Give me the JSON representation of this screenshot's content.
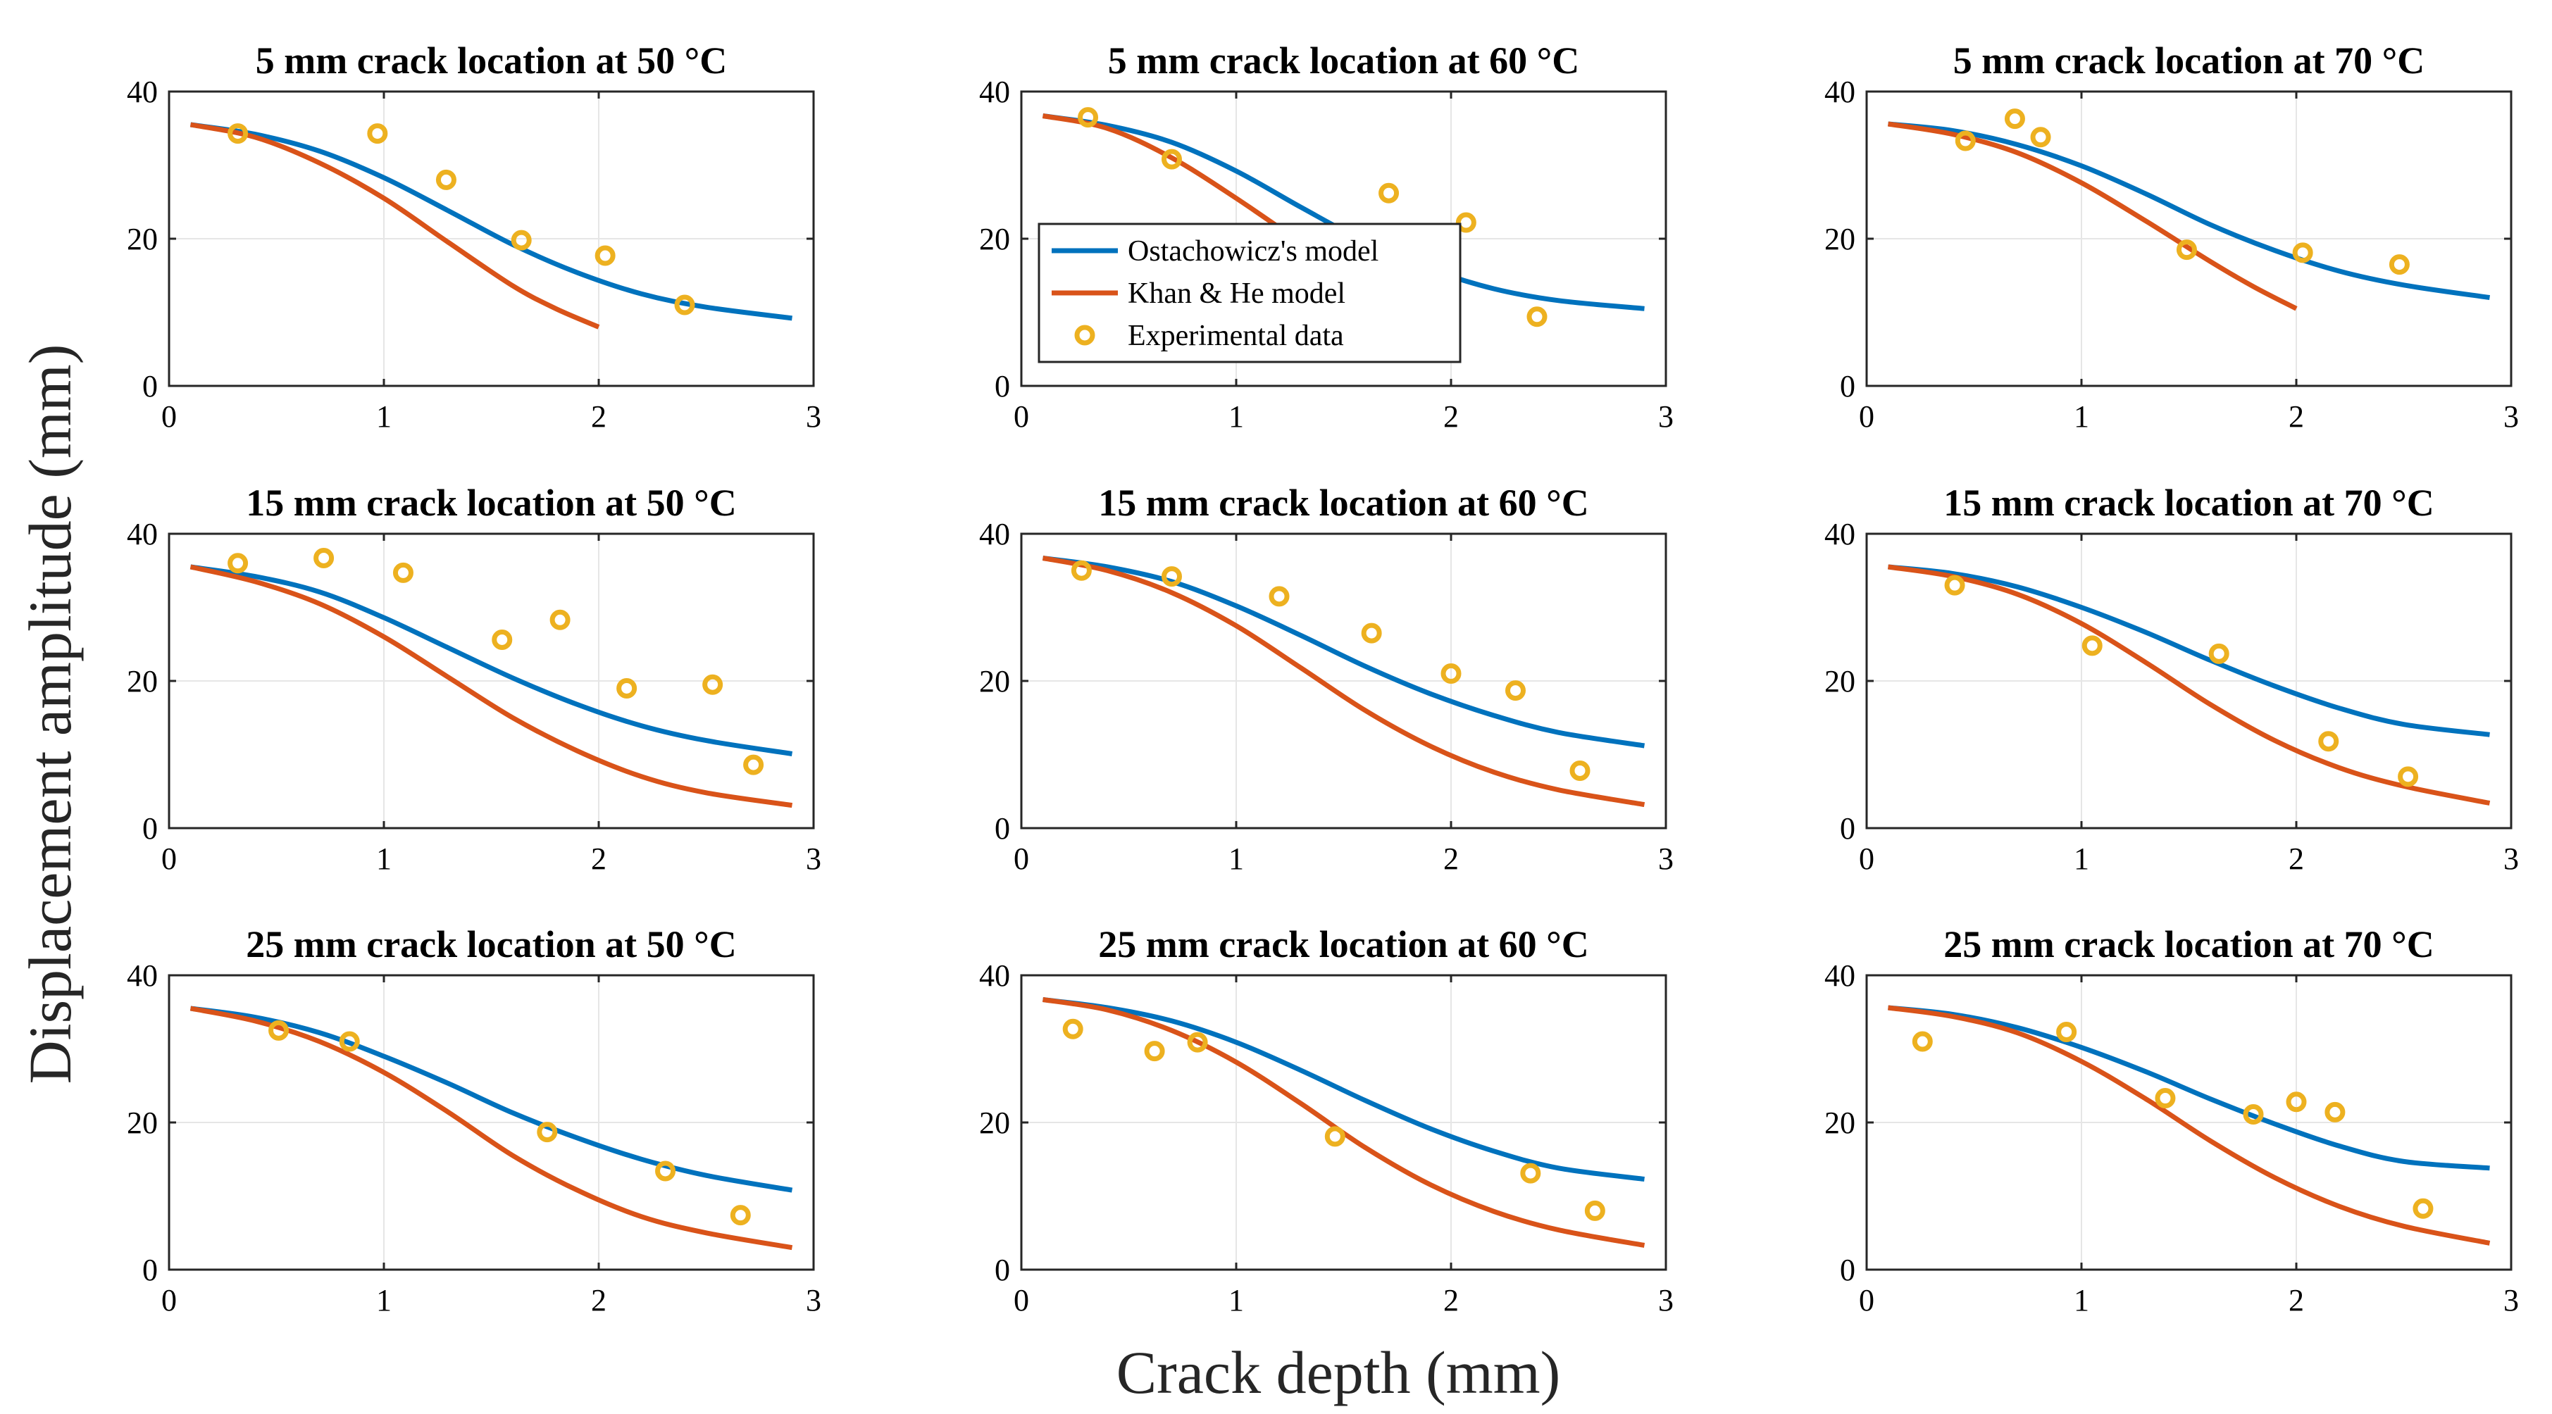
{
  "figure": {
    "ylabel": "Displacement amplitude (mm)",
    "xlabel": "Crack depth (mm)"
  },
  "legend": {
    "location": "center-left of top-middle panel",
    "entries": [
      {
        "label": "Ostachowicz's model",
        "kind": "line",
        "color": "#0072BD"
      },
      {
        "label": "Khan & He model",
        "kind": "line",
        "color": "#D95319"
      },
      {
        "label": "Experimental data",
        "kind": "marker",
        "color": "#EDB120"
      }
    ]
  },
  "colors": {
    "ostachowicz": "#0072BD",
    "khan_he": "#D95319",
    "experimental": "#EDB120",
    "grid": "#e6e6e6"
  },
  "chart_data": [
    {
      "type": "line",
      "title": "5 mm crack location at 50 °C",
      "xlim": [
        0,
        3
      ],
      "ylim": [
        0,
        40
      ],
      "xticks": [
        "0",
        "1",
        "2",
        "3"
      ],
      "yticks": [
        "0",
        "20",
        "40"
      ],
      "grid": true,
      "series": [
        {
          "name": "Ostachowicz's model",
          "x": [
            0.1,
            0.4,
            0.7,
            1.0,
            1.3,
            1.6,
            1.9,
            2.2,
            2.5,
            2.9
          ],
          "y": [
            35.5,
            34.2,
            31.9,
            28.3,
            23.8,
            19.2,
            15.4,
            12.5,
            10.7,
            9.2
          ]
        },
        {
          "name": "Khan & He model",
          "x": [
            0.1,
            0.4,
            0.7,
            1.0,
            1.3,
            1.6,
            1.8,
            2.0
          ],
          "y": [
            35.5,
            33.8,
            30.3,
            25.5,
            19.5,
            13.6,
            10.5,
            8.0
          ]
        },
        {
          "name": "Experimental data",
          "x": [
            0.32,
            0.97,
            1.29,
            1.64,
            2.03,
            2.4
          ],
          "y": [
            34.3,
            34.3,
            28.0,
            19.8,
            17.7,
            11.0
          ]
        }
      ]
    },
    {
      "type": "line",
      "title": "5 mm crack location at 60 °C",
      "xlim": [
        0,
        3
      ],
      "ylim": [
        0,
        40
      ],
      "xticks": [
        "0",
        "1",
        "2",
        "3"
      ],
      "yticks": [
        "0",
        "20",
        "40"
      ],
      "grid": true,
      "series": [
        {
          "name": "Ostachowicz's model",
          "x": [
            0.1,
            0.4,
            0.7,
            1.0,
            1.3,
            1.6,
            1.9,
            2.2,
            2.5,
            2.9
          ],
          "y": [
            36.7,
            35.4,
            33.1,
            29.2,
            24.3,
            19.6,
            15.9,
            13.2,
            11.6,
            10.5
          ]
        },
        {
          "name": "Khan & He model",
          "x": [
            0.1,
            0.4,
            0.7,
            1.0,
            1.3
          ],
          "y": [
            36.7,
            35.0,
            31.0,
            25.5,
            19.5
          ]
        },
        {
          "name": "Experimental data",
          "x": [
            0.31,
            0.7,
            1.71,
            2.07,
            2.4
          ],
          "y": [
            36.5,
            30.8,
            26.2,
            22.2,
            9.4
          ]
        }
      ]
    },
    {
      "type": "line",
      "title": "5 mm crack location at 70 °C",
      "xlim": [
        0,
        3
      ],
      "ylim": [
        0,
        40
      ],
      "xticks": [
        "0",
        "1",
        "2",
        "3"
      ],
      "yticks": [
        "0",
        "20",
        "40"
      ],
      "grid": true,
      "series": [
        {
          "name": "Ostachowicz's model",
          "x": [
            0.1,
            0.4,
            0.7,
            1.0,
            1.3,
            1.6,
            1.9,
            2.2,
            2.5,
            2.9
          ],
          "y": [
            35.6,
            34.7,
            32.8,
            29.9,
            26.1,
            21.9,
            18.4,
            15.6,
            13.7,
            12.0
          ]
        },
        {
          "name": "Khan & He model",
          "x": [
            0.1,
            0.4,
            0.7,
            1.0,
            1.3,
            1.6,
            1.8,
            2.0
          ],
          "y": [
            35.6,
            34.2,
            31.7,
            27.6,
            22.4,
            16.9,
            13.5,
            10.5
          ]
        },
        {
          "name": "Experimental data",
          "x": [
            0.46,
            0.69,
            0.81,
            1.49,
            2.03,
            2.48
          ],
          "y": [
            33.3,
            36.3,
            33.8,
            18.5,
            18.1,
            16.5
          ]
        }
      ]
    },
    {
      "type": "line",
      "title": "15 mm crack location at 50 °C",
      "xlim": [
        0,
        3
      ],
      "ylim": [
        0,
        40
      ],
      "xticks": [
        "0",
        "1",
        "2",
        "3"
      ],
      "yticks": [
        "0",
        "20",
        "40"
      ],
      "grid": true,
      "series": [
        {
          "name": "Ostachowicz's model",
          "x": [
            0.1,
            0.4,
            0.7,
            1.0,
            1.3,
            1.6,
            1.9,
            2.2,
            2.5,
            2.9
          ],
          "y": [
            35.5,
            34.2,
            32.1,
            28.6,
            24.5,
            20.4,
            16.8,
            13.9,
            11.9,
            10.1
          ]
        },
        {
          "name": "Khan & He model",
          "x": [
            0.1,
            0.4,
            0.7,
            1.0,
            1.3,
            1.6,
            1.9,
            2.2,
            2.5,
            2.9
          ],
          "y": [
            35.5,
            33.5,
            30.5,
            26.0,
            20.5,
            15.0,
            10.5,
            7.0,
            4.8,
            3.1
          ]
        },
        {
          "name": "Experimental data",
          "x": [
            0.32,
            0.72,
            1.09,
            1.55,
            1.82,
            2.13,
            2.53,
            2.72
          ],
          "y": [
            36.0,
            36.7,
            34.7,
            25.6,
            28.3,
            19.0,
            19.5,
            8.6
          ]
        }
      ]
    },
    {
      "type": "line",
      "title": "15 mm crack location at 60 °C",
      "xlim": [
        0,
        3
      ],
      "ylim": [
        0,
        40
      ],
      "xticks": [
        "0",
        "1",
        "2",
        "3"
      ],
      "yticks": [
        "0",
        "20",
        "40"
      ],
      "grid": true,
      "series": [
        {
          "name": "Ostachowicz's model",
          "x": [
            0.1,
            0.4,
            0.7,
            1.0,
            1.3,
            1.6,
            1.9,
            2.2,
            2.5,
            2.9
          ],
          "y": [
            36.7,
            35.5,
            33.5,
            30.2,
            26.2,
            22.0,
            18.3,
            15.3,
            13.0,
            11.2
          ]
        },
        {
          "name": "Khan & He model",
          "x": [
            0.1,
            0.4,
            0.7,
            1.0,
            1.3,
            1.6,
            1.9,
            2.2,
            2.5,
            2.9
          ],
          "y": [
            36.7,
            35.0,
            32.0,
            27.5,
            21.8,
            16.0,
            11.2,
            7.6,
            5.2,
            3.2
          ]
        },
        {
          "name": "Experimental data",
          "x": [
            0.28,
            0.7,
            1.2,
            1.63,
            2.0,
            2.3,
            2.6
          ],
          "y": [
            35.0,
            34.2,
            31.5,
            26.5,
            21.0,
            18.7,
            7.8
          ]
        }
      ]
    },
    {
      "type": "line",
      "title": "15 mm crack location at 70 °C",
      "xlim": [
        0,
        3
      ],
      "ylim": [
        0,
        40
      ],
      "xticks": [
        "0",
        "1",
        "2",
        "3"
      ],
      "yticks": [
        "0",
        "20",
        "40"
      ],
      "grid": true,
      "series": [
        {
          "name": "Ostachowicz's model",
          "x": [
            0.1,
            0.4,
            0.7,
            1.0,
            1.3,
            1.6,
            1.9,
            2.2,
            2.5,
            2.9
          ],
          "y": [
            35.5,
            34.6,
            32.8,
            30.0,
            26.6,
            22.8,
            19.3,
            16.3,
            14.1,
            12.7
          ]
        },
        {
          "name": "Khan & He model",
          "x": [
            0.1,
            0.4,
            0.7,
            1.0,
            1.3,
            1.6,
            1.9,
            2.2,
            2.5,
            2.9
          ],
          "y": [
            35.5,
            34.2,
            31.8,
            27.8,
            22.5,
            16.8,
            11.9,
            8.2,
            5.7,
            3.4
          ]
        },
        {
          "name": "Experimental data",
          "x": [
            0.41,
            1.05,
            1.64,
            2.15,
            2.52
          ],
          "y": [
            33.0,
            24.8,
            23.7,
            11.8,
            7.0
          ]
        }
      ]
    },
    {
      "type": "line",
      "title": "25 mm crack location at 50 °C",
      "xlim": [
        0,
        3
      ],
      "ylim": [
        0,
        40
      ],
      "xticks": [
        "0",
        "1",
        "2",
        "3"
      ],
      "yticks": [
        "0",
        "20",
        "40"
      ],
      "grid": true,
      "series": [
        {
          "name": "Ostachowicz's model",
          "x": [
            0.1,
            0.4,
            0.7,
            1.0,
            1.3,
            1.6,
            1.9,
            2.2,
            2.5,
            2.9
          ],
          "y": [
            35.5,
            34.3,
            32.2,
            29.0,
            25.3,
            21.3,
            17.9,
            15.0,
            12.8,
            10.8
          ]
        },
        {
          "name": "Khan & He model",
          "x": [
            0.1,
            0.4,
            0.7,
            1.0,
            1.3,
            1.6,
            1.9,
            2.2,
            2.5,
            2.9
          ],
          "y": [
            35.5,
            33.8,
            31.0,
            26.8,
            21.4,
            15.5,
            10.8,
            7.2,
            5.0,
            3.0
          ]
        },
        {
          "name": "Experimental data",
          "x": [
            0.51,
            0.84,
            1.76,
            2.31,
            2.66
          ],
          "y": [
            32.5,
            31.0,
            18.7,
            13.4,
            7.4
          ]
        }
      ]
    },
    {
      "type": "line",
      "title": "25 mm crack location at 60 °C",
      "xlim": [
        0,
        3
      ],
      "ylim": [
        0,
        40
      ],
      "xticks": [
        "0",
        "1",
        "2",
        "3"
      ],
      "yticks": [
        "0",
        "20",
        "40"
      ],
      "grid": true,
      "series": [
        {
          "name": "Ostachowicz's model",
          "x": [
            0.1,
            0.4,
            0.7,
            1.0,
            1.3,
            1.6,
            1.9,
            2.2,
            2.5,
            2.9
          ],
          "y": [
            36.7,
            35.6,
            33.8,
            30.9,
            27.1,
            23.0,
            19.2,
            16.1,
            13.8,
            12.3
          ]
        },
        {
          "name": "Khan & He model",
          "x": [
            0.1,
            0.4,
            0.7,
            1.0,
            1.3,
            1.6,
            1.9,
            2.2,
            2.5,
            2.9
          ],
          "y": [
            36.7,
            35.3,
            32.5,
            28.2,
            22.6,
            16.6,
            11.6,
            7.9,
            5.4,
            3.3
          ]
        },
        {
          "name": "Experimental data",
          "x": [
            0.24,
            0.62,
            0.82,
            1.46,
            2.37,
            2.67
          ],
          "y": [
            32.7,
            29.7,
            30.9,
            18.1,
            13.1,
            8.0
          ]
        }
      ]
    },
    {
      "type": "line",
      "title": "25 mm crack location at 70 °C",
      "xlim": [
        0,
        3
      ],
      "ylim": [
        0,
        40
      ],
      "xticks": [
        "0",
        "1",
        "2",
        "3"
      ],
      "yticks": [
        "0",
        "20",
        "40"
      ],
      "grid": true,
      "series": [
        {
          "name": "Ostachowicz's model",
          "x": [
            0.1,
            0.4,
            0.7,
            1.0,
            1.3,
            1.6,
            1.9,
            2.2,
            2.5,
            2.9
          ],
          "y": [
            35.6,
            34.7,
            32.9,
            30.2,
            26.9,
            23.2,
            19.8,
            16.8,
            14.7,
            13.8
          ]
        },
        {
          "name": "Khan & He model",
          "x": [
            0.1,
            0.4,
            0.7,
            1.0,
            1.3,
            1.6,
            1.9,
            2.2,
            2.5,
            2.9
          ],
          "y": [
            35.6,
            34.4,
            32.2,
            28.3,
            23.2,
            17.5,
            12.5,
            8.6,
            5.9,
            3.6
          ]
        },
        {
          "name": "Experimental data",
          "x": [
            0.26,
            0.93,
            1.39,
            1.8,
            2.0,
            2.18,
            2.59
          ],
          "y": [
            31.0,
            32.3,
            23.3,
            21.1,
            22.8,
            21.4,
            8.3
          ]
        }
      ]
    }
  ]
}
